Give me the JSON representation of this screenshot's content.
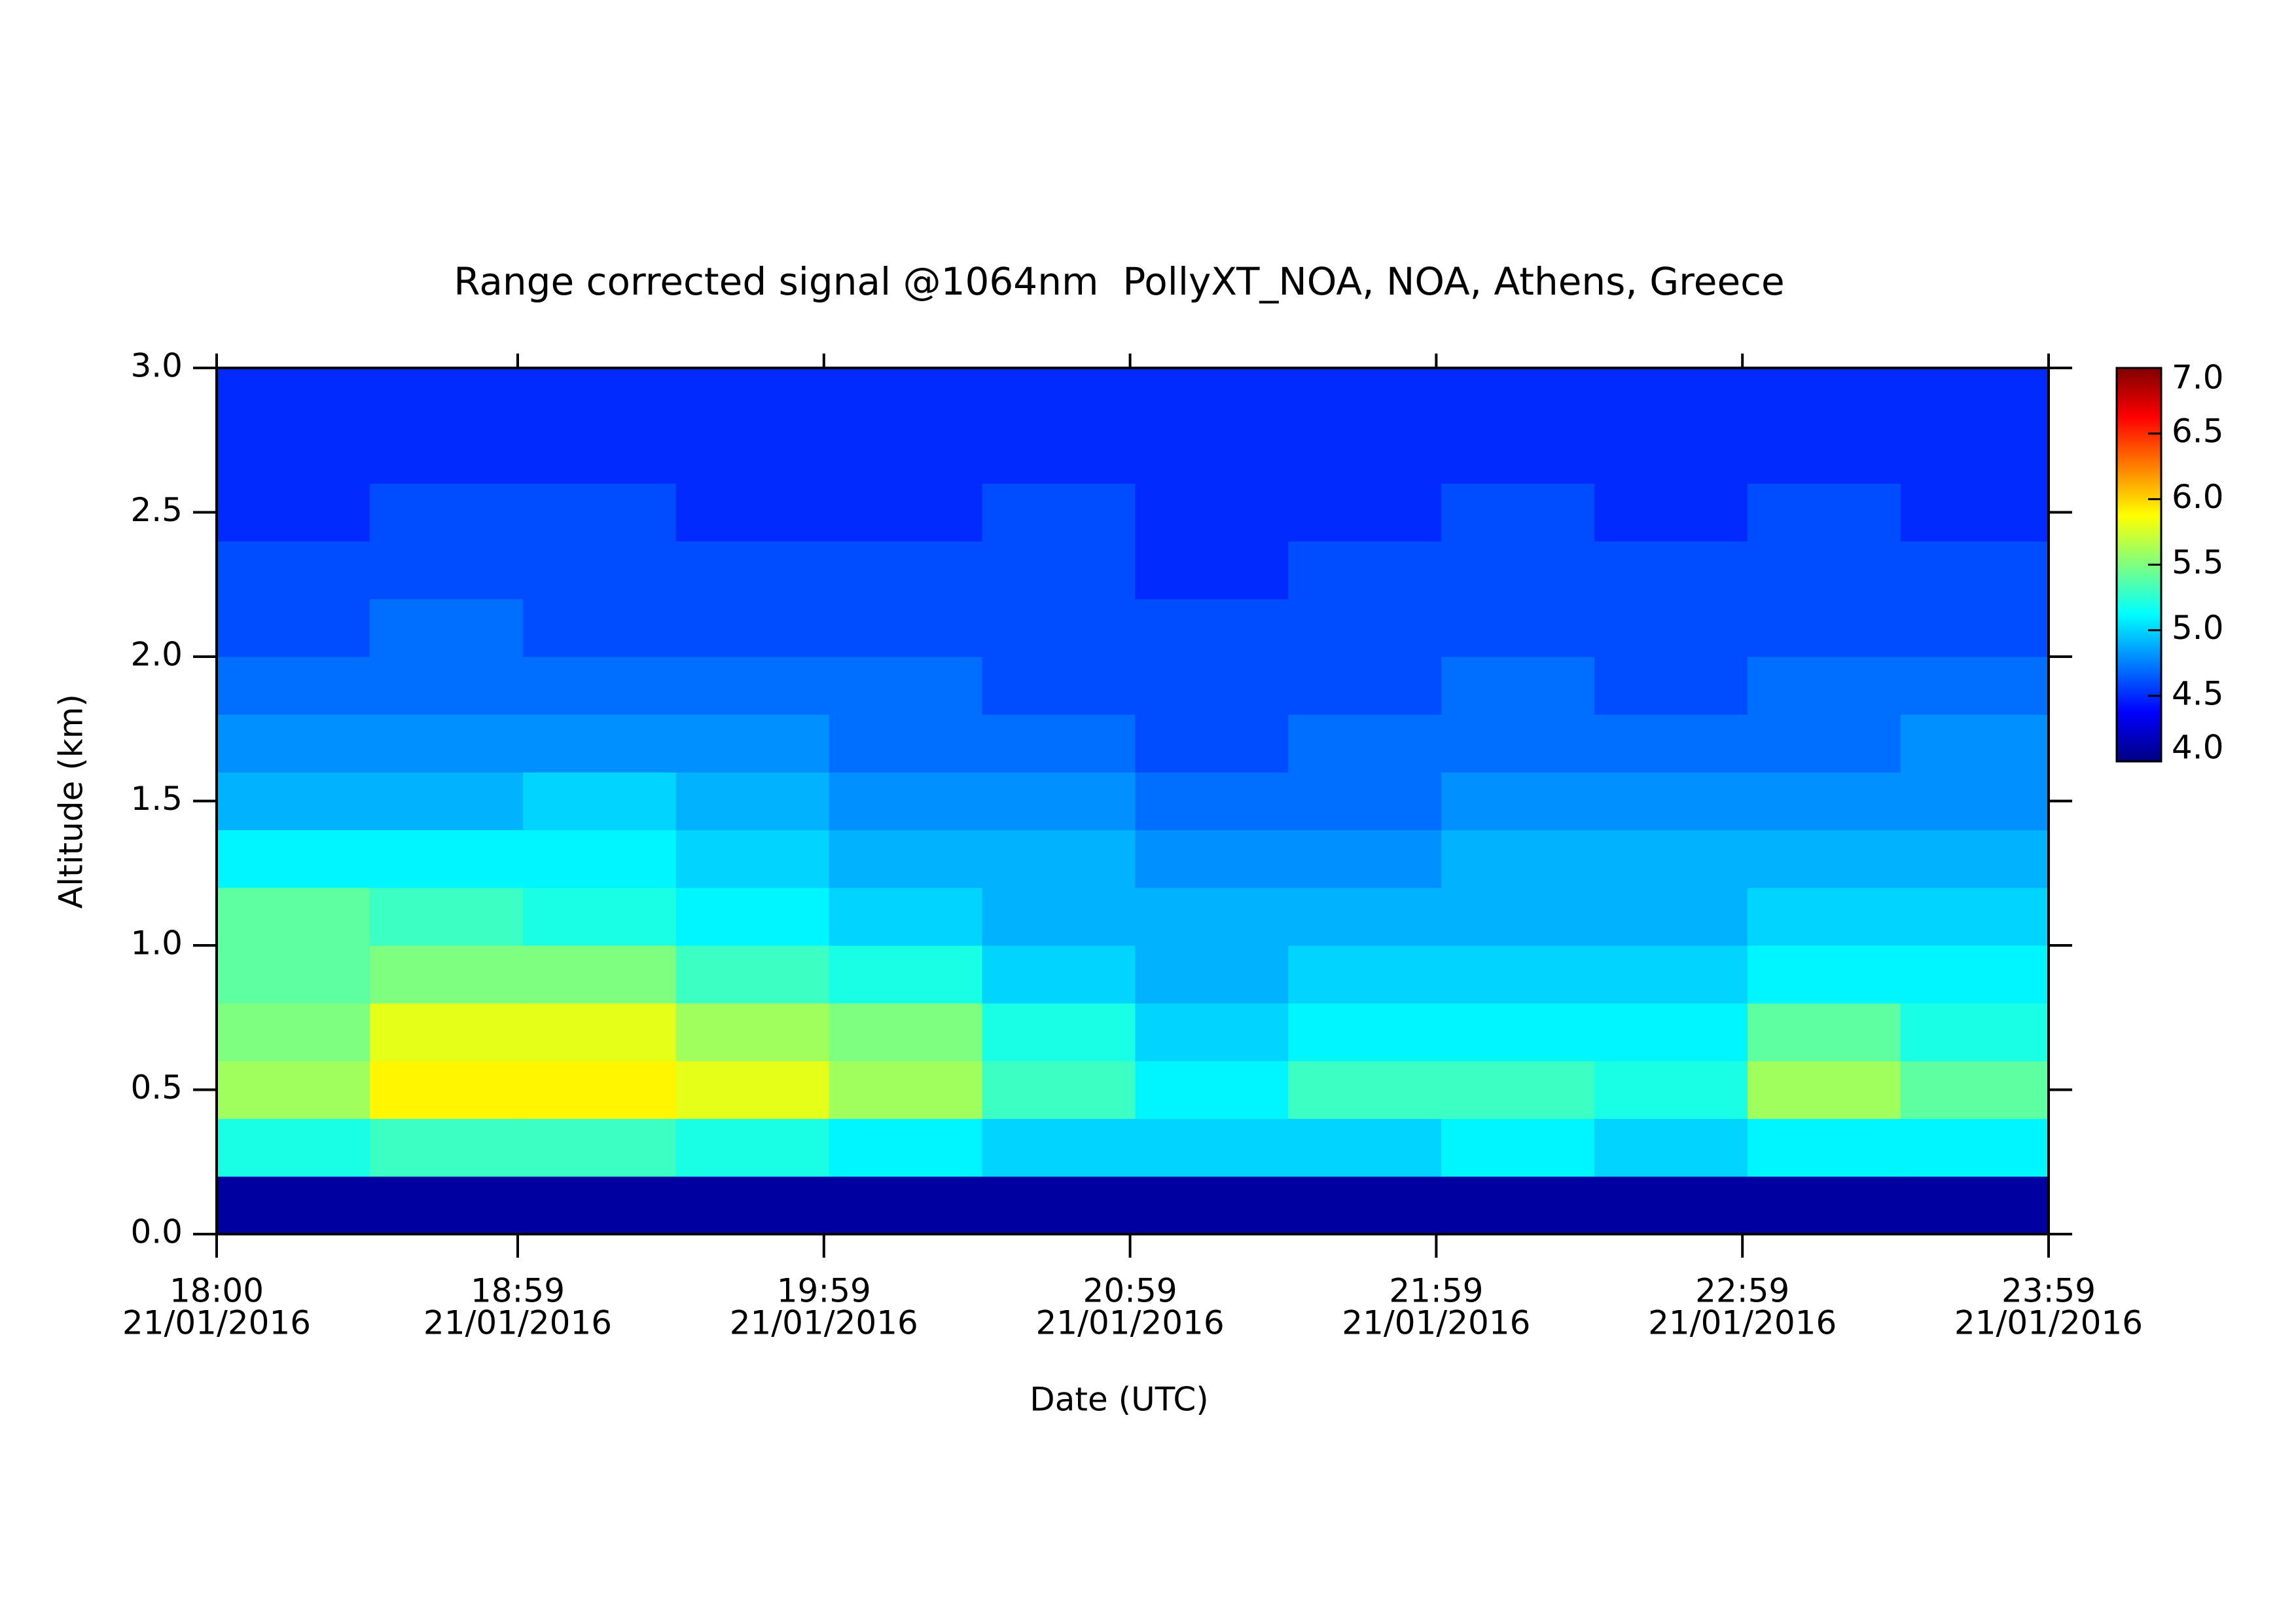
{
  "chart_data": {
    "type": "heatmap",
    "title": "Range corrected signal @1064nm  PollyXT_NOA, NOA, Athens, Greece",
    "x_label": "Date (UTC)",
    "y_label": "Altitude (km)",
    "xlim": [
      18,
      23.9833
    ],
    "xticks": [
      {
        "value": 18,
        "label": "18:00"
      },
      {
        "value": 18.9833,
        "label": "18:59"
      },
      {
        "value": 19.9833,
        "label": "19:59"
      },
      {
        "value": 20.9833,
        "label": "20:59"
      },
      {
        "value": 21.9833,
        "label": "21:59"
      },
      {
        "value": 22.9833,
        "label": "22:59"
      },
      {
        "value": 23.9833,
        "label": "23:59"
      }
    ],
    "xtick_dates": [
      "21/01/2016",
      "21/01/2016",
      "21/01/2016",
      "21/01/2016",
      "21/01/2016",
      "21/01/2016",
      "21/01/2016"
    ],
    "ylim": [
      0,
      3
    ],
    "yticks": [
      {
        "value": 0,
        "label": "0.0"
      },
      0.5,
      {
        "value": 1,
        "label": "1.0"
      },
      1.5,
      {
        "value": 2,
        "label": "2.0"
      },
      2.5,
      {
        "value": 3,
        "label": "3.0"
      }
    ],
    "x_edges": [
      18,
      18.5,
      19,
      19.5,
      20,
      20.5,
      21,
      21.5,
      22,
      22.5,
      23,
      23.5,
      23.9833
    ],
    "y_edges": [
      0,
      0.2,
      0.4,
      0.6,
      0.8,
      1.0,
      1.2,
      1.4,
      1.6,
      1.8,
      2.0,
      2.2,
      2.4,
      2.6,
      2.8,
      3.0
    ],
    "z": [
      [
        4.1,
        4.1,
        4.1,
        4.1,
        4.1,
        4.1,
        4.1,
        4.1,
        4.1,
        4.1,
        4.1,
        4.1
      ],
      [
        5.2,
        5.3,
        5.3,
        5.2,
        5.1,
        5.0,
        5.0,
        5.0,
        5.1,
        5.0,
        5.1,
        5.1
      ],
      [
        5.6,
        5.9,
        5.9,
        5.8,
        5.6,
        5.3,
        5.1,
        5.3,
        5.3,
        5.2,
        5.6,
        5.4
      ],
      [
        5.5,
        5.8,
        5.8,
        5.6,
        5.5,
        5.2,
        5.0,
        5.1,
        5.1,
        5.1,
        5.4,
        5.2
      ],
      [
        5.4,
        5.5,
        5.5,
        5.3,
        5.2,
        5.0,
        4.9,
        5.0,
        5.0,
        5.0,
        5.1,
        5.1
      ],
      [
        5.4,
        5.3,
        5.2,
        5.1,
        5.0,
        4.9,
        4.9,
        4.9,
        4.9,
        4.9,
        5.0,
        5.0
      ],
      [
        5.1,
        5.1,
        5.1,
        5.0,
        4.9,
        4.9,
        4.8,
        4.8,
        4.9,
        4.9,
        4.9,
        4.9
      ],
      [
        4.9,
        4.9,
        5.0,
        4.9,
        4.8,
        4.8,
        4.7,
        4.7,
        4.8,
        4.8,
        4.8,
        4.8
      ],
      [
        4.8,
        4.8,
        4.8,
        4.8,
        4.7,
        4.7,
        4.6,
        4.7,
        4.7,
        4.7,
        4.7,
        4.8
      ],
      [
        4.7,
        4.7,
        4.7,
        4.7,
        4.7,
        4.6,
        4.6,
        4.6,
        4.7,
        4.6,
        4.7,
        4.7
      ],
      [
        4.6,
        4.7,
        4.6,
        4.6,
        4.6,
        4.6,
        4.6,
        4.6,
        4.6,
        4.6,
        4.6,
        4.6
      ],
      [
        4.6,
        4.6,
        4.6,
        4.6,
        4.6,
        4.6,
        4.5,
        4.6,
        4.6,
        4.6,
        4.6,
        4.6
      ],
      [
        4.5,
        4.6,
        4.6,
        4.5,
        4.5,
        4.6,
        4.5,
        4.5,
        4.6,
        4.5,
        4.6,
        4.5
      ],
      [
        4.5,
        4.5,
        4.5,
        4.5,
        4.5,
        4.5,
        4.5,
        4.5,
        4.5,
        4.5,
        4.5,
        4.5
      ],
      [
        4.5,
        4.5,
        4.5,
        4.5,
        4.5,
        4.5,
        4.5,
        4.5,
        4.5,
        4.5,
        4.5,
        4.5
      ]
    ],
    "zlim": [
      4,
      7
    ],
    "zticks": [
      {
        "value": 4,
        "label": "4.0"
      },
      4.5,
      {
        "value": 5,
        "label": "5.0"
      },
      5.5,
      {
        "value": 6,
        "label": "6.0"
      },
      6.5,
      {
        "value": 7,
        "label": "7.0"
      }
    ],
    "colormap": [
      "#00007f",
      "#0000ff",
      "#007fff",
      "#00ffff",
      "#7fff7f",
      "#ffff00",
      "#ff7f00",
      "#ff0000",
      "#7f0000"
    ]
  }
}
